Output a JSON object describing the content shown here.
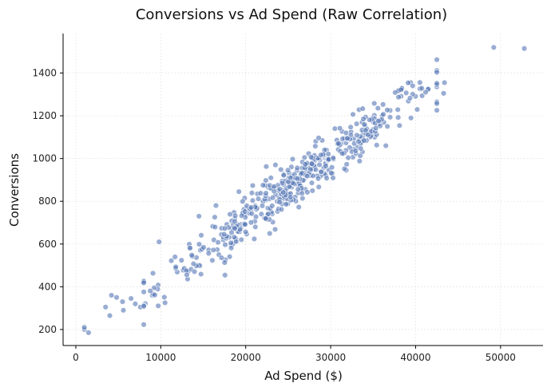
{
  "chart_data": {
    "type": "scatter",
    "title": "Conversions vs Ad Spend (Raw Correlation)",
    "xlabel": "Ad Spend ($)",
    "ylabel": "Conversions",
    "xlim": [
      -1500,
      55000
    ],
    "ylim": [
      125,
      1585
    ],
    "xticks": [
      0,
      10000,
      20000,
      30000,
      40000,
      50000
    ],
    "yticks": [
      200,
      400,
      600,
      800,
      1000,
      1200,
      1400
    ],
    "grid": true,
    "point_color": "#5a7bb8",
    "points_count": 500,
    "trend": {
      "slope": 0.0291,
      "intercept": 130
    },
    "notable_points": [
      {
        "x": 1000,
        "y": 200
      },
      {
        "x": 1000,
        "y": 210
      },
      {
        "x": 1500,
        "y": 185
      },
      {
        "x": 3500,
        "y": 305
      },
      {
        "x": 4000,
        "y": 265
      },
      {
        "x": 4200,
        "y": 360
      },
      {
        "x": 4800,
        "y": 350
      },
      {
        "x": 5500,
        "y": 330
      },
      {
        "x": 5600,
        "y": 290
      },
      {
        "x": 6500,
        "y": 345
      },
      {
        "x": 7000,
        "y": 320
      },
      {
        "x": 7600,
        "y": 305
      },
      {
        "x": 9000,
        "y": 360
      },
      {
        "x": 9800,
        "y": 610
      },
      {
        "x": 10500,
        "y": 325
      },
      {
        "x": 14500,
        "y": 730
      },
      {
        "x": 16500,
        "y": 780
      },
      {
        "x": 19200,
        "y": 845
      },
      {
        "x": 23500,
        "y": 970
      },
      {
        "x": 29000,
        "y": 1085
      },
      {
        "x": 29500,
        "y": 1040
      },
      {
        "x": 30500,
        "y": 1140
      },
      {
        "x": 36500,
        "y": 1060
      },
      {
        "x": 37000,
        "y": 1225
      },
      {
        "x": 41500,
        "y": 1325
      },
      {
        "x": 42500,
        "y": 1265
      },
      {
        "x": 43300,
        "y": 1305
      },
      {
        "x": 43400,
        "y": 1355
      },
      {
        "x": 49200,
        "y": 1520
      },
      {
        "x": 52800,
        "y": 1515
      }
    ]
  }
}
